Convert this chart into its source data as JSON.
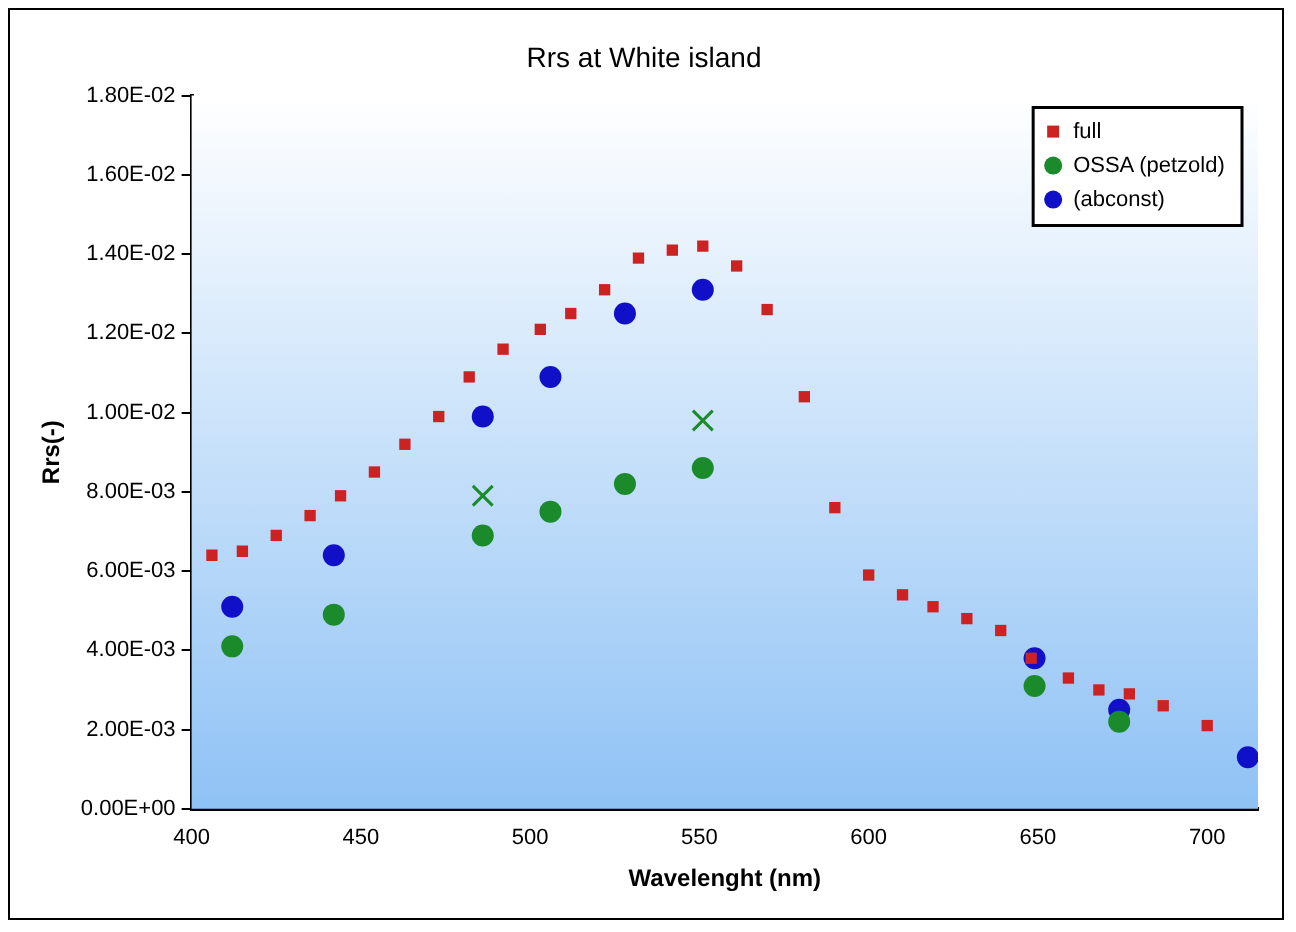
{
  "chart_data": {
    "type": "scatter",
    "title": "Rrs at White island",
    "xlabel": "Wavelenght (nm)",
    "ylabel": "Rrs(-)",
    "xlim": [
      400,
      715
    ],
    "xticks": [
      400,
      450,
      500,
      550,
      600,
      650,
      700
    ],
    "ylim": [
      0,
      0.018
    ],
    "yticks": [
      {
        "value": 0,
        "label": "0.00E+00"
      },
      {
        "value": 0.002,
        "label": "2.00E-03"
      },
      {
        "value": 0.004,
        "label": "4.00E-03"
      },
      {
        "value": 0.006,
        "label": "6.00E-03"
      },
      {
        "value": 0.008,
        "label": "8.00E-03"
      },
      {
        "value": 0.01,
        "label": "1.00E-02"
      },
      {
        "value": 0.012,
        "label": "1.20E-02"
      },
      {
        "value": 0.014,
        "label": "1.40E-02"
      },
      {
        "value": 0.016,
        "label": "1.60E-02"
      },
      {
        "value": 0.018,
        "label": "1.80E-02"
      }
    ],
    "grid": false,
    "legend": "top right",
    "series": [
      {
        "name": "full",
        "color": "#cc2222",
        "marker": "square",
        "x": [
          406,
          415,
          425,
          435,
          444,
          454,
          463,
          473,
          482,
          492,
          503,
          512,
          522,
          532,
          542,
          551,
          561,
          570,
          581,
          590,
          600,
          610,
          619,
          629,
          639,
          648,
          659,
          668,
          677,
          687,
          700
        ],
        "values": [
          0.0064,
          0.0065,
          0.0069,
          0.0074,
          0.0079,
          0.0085,
          0.0092,
          0.0099,
          0.0109,
          0.0116,
          0.0121,
          0.0125,
          0.0131,
          0.0139,
          0.0141,
          0.0142,
          0.0137,
          0.0126,
          0.0104,
          0.0076,
          0.0059,
          0.0054,
          0.0051,
          0.0048,
          0.0045,
          0.0038,
          0.0033,
          0.003,
          0.0029,
          0.0026,
          0.0021
        ]
      },
      {
        "name": "OSSA (petzold)",
        "color": "#1a8a2a",
        "marker": "circle",
        "x": [
          412,
          442,
          486,
          506,
          528,
          551,
          649,
          674
        ],
        "values": [
          0.0041,
          0.0049,
          0.0069,
          0.0075,
          0.0082,
          0.0086,
          0.0031,
          0.0022
        ]
      },
      {
        "name": "(abconst)",
        "color": "#1010c8",
        "marker": "circle",
        "x": [
          412,
          442,
          486,
          506,
          528,
          551,
          649,
          674,
          712
        ],
        "values": [
          0.0051,
          0.0064,
          0.0099,
          0.0109,
          0.0125,
          0.0131,
          0.0038,
          0.0025,
          0.0013
        ]
      },
      {
        "color": "#1a8a2a",
        "marker": "cross",
        "x": [
          486,
          551
        ],
        "values": [
          0.0079,
          0.0098
        ]
      }
    ]
  }
}
